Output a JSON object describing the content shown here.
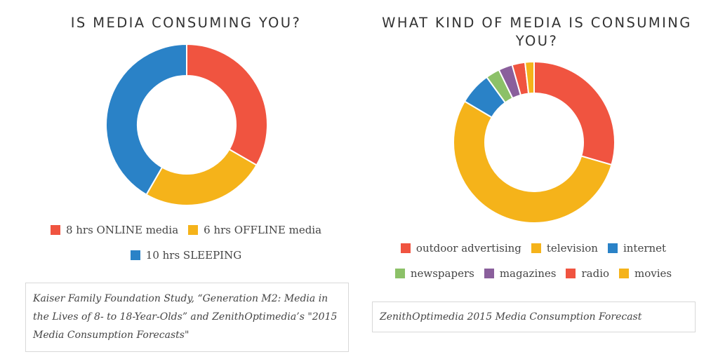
{
  "colors": {
    "red": "#f05440",
    "yellow": "#f5b31a",
    "blue": "#2a82c7",
    "green": "#8cc168",
    "purple": "#8a5f9c",
    "orange": "#f7a81e"
  },
  "chart_data": [
    {
      "type": "pie",
      "title": "IS MEDIA CONSUMING YOU?",
      "donut": true,
      "categories": [
        "8 hrs ONLINE media",
        "6 hrs OFFLINE media",
        "10 hrs SLEEPING"
      ],
      "values": [
        8,
        6,
        10
      ],
      "colors": [
        "#f05440",
        "#f5b31a",
        "#2a82c7"
      ],
      "legend": "bottom",
      "source": "Kaiser Family Foundation Study, “Generation M2: Media in the Lives of 8- to 18-Year-Olds” and ZenithOptimedia’s \"2015 Media Consumption Forecasts\""
    },
    {
      "type": "pie",
      "title": "WHAT KIND OF MEDIA IS CONSUMING YOU?",
      "donut": true,
      "categories": [
        "outdoor advertising",
        "television",
        "internet",
        "newspapers",
        "magazines",
        "radio",
        "movies"
      ],
      "values": [
        29.5,
        54,
        6.5,
        2.8,
        2.8,
        2.6,
        1.8
      ],
      "colors": [
        "#f05440",
        "#f5b31a",
        "#2a82c7",
        "#8cc168",
        "#8a5f9c",
        "#f05440",
        "#f5b31a"
      ],
      "legend": "bottom",
      "source": "ZenithOptimedia 2015 Media Consumption Forecast"
    }
  ]
}
